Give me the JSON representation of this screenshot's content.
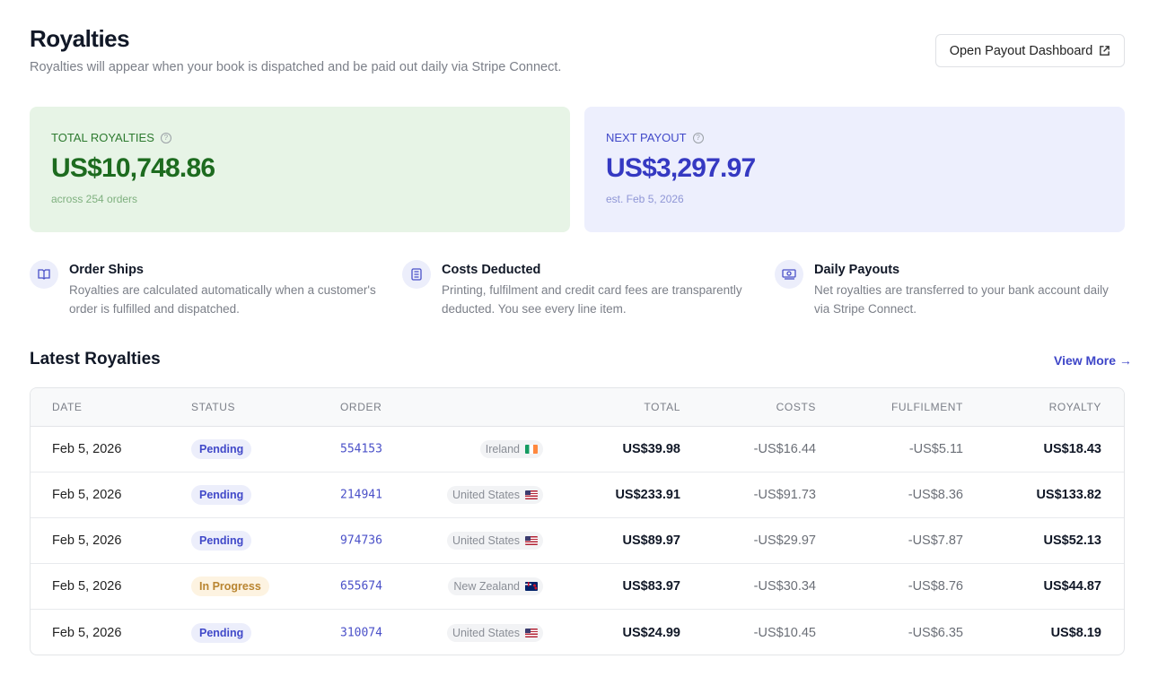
{
  "header": {
    "title": "Royalties",
    "subtitle": "Royalties will appear when your book is dispatched and be paid out daily via Stripe Connect.",
    "button": "Open Payout Dashboard"
  },
  "cards": {
    "total": {
      "label": "TOTAL ROYALTIES",
      "amount": "US$10,748.86",
      "note": "across 254 orders",
      "color": "#1d6b1f",
      "bg": "#e7f4e6"
    },
    "next": {
      "label": "NEXT PAYOUT",
      "amount": "US$3,297.97",
      "note": "est. Feb 5, 2026",
      "color": "#3539c2",
      "bg": "#edeffd"
    }
  },
  "features": [
    {
      "icon": "book-icon",
      "title": "Order Ships",
      "desc": "Royalties are calculated automatically when a customer's order is fulfilled and dispatched."
    },
    {
      "icon": "receipt-icon",
      "title": "Costs Deducted",
      "desc": "Printing, fulfilment and credit card fees are transparently deducted. You see every line item."
    },
    {
      "icon": "banknote-icon",
      "title": "Daily Payouts",
      "desc": "Net royalties are transferred to your bank account daily via Stripe Connect."
    }
  ],
  "latest": {
    "title": "Latest Royalties",
    "view_more": "View More →"
  },
  "table": {
    "columns": [
      "DATE",
      "STATUS",
      "ORDER",
      "TOTAL",
      "COSTS",
      "FULFILMENT",
      "ROYALTY"
    ],
    "rows": [
      {
        "date": "Feb 5, 2026",
        "status": "Pending",
        "order": "554153",
        "country": "Ireland",
        "flag": "ie",
        "total": "US$39.98",
        "costs": "-US$16.44",
        "fulfilment": "-US$5.11",
        "royalty": "US$18.43"
      },
      {
        "date": "Feb 5, 2026",
        "status": "Pending",
        "order": "214941",
        "country": "United States",
        "flag": "us",
        "total": "US$233.91",
        "costs": "-US$91.73",
        "fulfilment": "-US$8.36",
        "royalty": "US$133.82"
      },
      {
        "date": "Feb 5, 2026",
        "status": "Pending",
        "order": "974736",
        "country": "United States",
        "flag": "us",
        "total": "US$89.97",
        "costs": "-US$29.97",
        "fulfilment": "-US$7.87",
        "royalty": "US$52.13"
      },
      {
        "date": "Feb 5, 2026",
        "status": "In Progress",
        "order": "655674",
        "country": "New Zealand",
        "flag": "nz",
        "total": "US$83.97",
        "costs": "-US$30.34",
        "fulfilment": "-US$8.76",
        "royalty": "US$44.87"
      },
      {
        "date": "Feb 5, 2026",
        "status": "Pending",
        "order": "310074",
        "country": "United States",
        "flag": "us",
        "total": "US$24.99",
        "costs": "-US$10.45",
        "fulfilment": "-US$6.35",
        "royalty": "US$8.19"
      }
    ]
  }
}
